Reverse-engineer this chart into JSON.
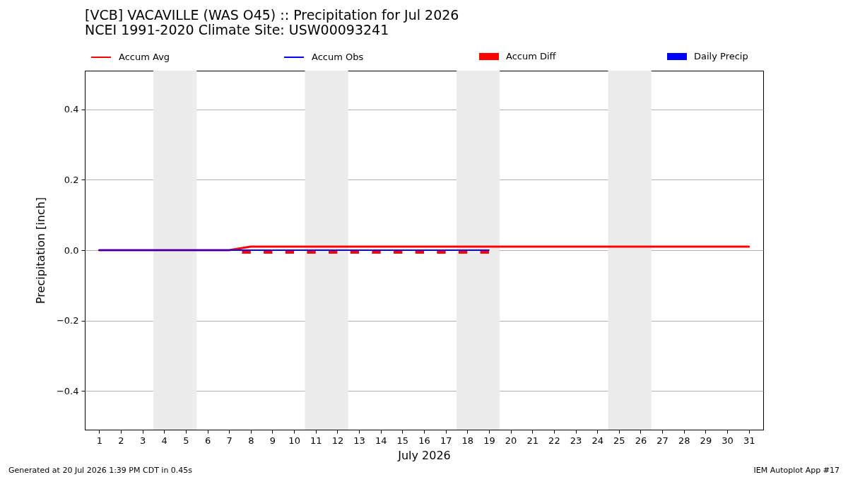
{
  "chart_data": {
    "type": "line",
    "title": "[VCB] VACAVILLE (WAS O45) :: Precipitation for Jul 2026",
    "subtitle": "NCEI 1991-2020 Climate Site: USW00093241",
    "xlabel": "July 2026",
    "ylabel": "Precipitation [inch]",
    "x": [
      1,
      2,
      3,
      4,
      5,
      6,
      7,
      8,
      9,
      10,
      11,
      12,
      13,
      14,
      15,
      16,
      17,
      18,
      19,
      20,
      21,
      22,
      23,
      24,
      25,
      26,
      27,
      28,
      29,
      30,
      31
    ],
    "series": [
      {
        "name": "Accum Avg",
        "color": "#ff0000",
        "values": [
          0,
          0,
          0,
          0,
          0,
          0,
          0,
          0.01,
          0.01,
          0.01,
          0.01,
          0.01,
          0.01,
          0.01,
          0.01,
          0.01,
          0.01,
          0.01,
          0.01,
          0.01,
          0.01,
          0.01,
          0.01,
          0.01,
          0.01,
          0.01,
          0.01,
          0.01,
          0.01,
          0.01,
          0.01
        ]
      },
      {
        "name": "Accum Obs",
        "color": "#0000ff",
        "x": [
          1,
          2,
          3,
          4,
          5,
          6,
          7,
          8,
          9,
          10,
          11,
          12,
          13,
          14,
          15,
          16,
          17,
          18,
          19
        ],
        "values": [
          0,
          0,
          0,
          0,
          0,
          0,
          0,
          0,
          0,
          0,
          0,
          0,
          0,
          0,
          0,
          0,
          0,
          0,
          0
        ]
      },
      {
        "name": "Accum Diff",
        "type": "bar",
        "color": "#ff0000",
        "x": [
          1,
          2,
          3,
          4,
          5,
          6,
          7,
          8,
          9,
          10,
          11,
          12,
          13,
          14,
          15,
          16,
          17,
          18,
          19
        ],
        "values": [
          0,
          0,
          0,
          0,
          0,
          0,
          0,
          -0.01,
          -0.01,
          -0.01,
          -0.01,
          -0.01,
          -0.01,
          -0.01,
          -0.01,
          -0.01,
          -0.01,
          -0.01,
          -0.01
        ]
      },
      {
        "name": "Daily Precip",
        "type": "bar",
        "color": "#0000ff",
        "x": [
          1,
          2,
          3,
          4,
          5,
          6,
          7,
          8,
          9,
          10,
          11,
          12,
          13,
          14,
          15,
          16,
          17,
          18,
          19
        ],
        "values": [
          0,
          0,
          0,
          0,
          0,
          0,
          0,
          0,
          0,
          0,
          0,
          0,
          0,
          0,
          0,
          0,
          0,
          0,
          0
        ]
      }
    ],
    "xlim": [
      0.5,
      31.5
    ],
    "ylim": [
      -0.51,
      0.51
    ],
    "xticks": [
      1,
      2,
      3,
      4,
      5,
      6,
      7,
      8,
      9,
      10,
      11,
      12,
      13,
      14,
      15,
      16,
      17,
      18,
      19,
      20,
      21,
      22,
      23,
      24,
      25,
      26,
      27,
      28,
      29,
      30,
      31
    ],
    "yticks": [
      {
        "value": -0.4,
        "label": "−0.4"
      },
      {
        "value": -0.2,
        "label": "−0.2"
      },
      {
        "value": 0,
        "label": "0.0"
      },
      0.2,
      0.4
    ],
    "grid": "y",
    "legend": "top",
    "bands": [
      {
        "axis": "x",
        "from": 3.5,
        "to": 5.5,
        "color": "#ececec"
      },
      {
        "axis": "x",
        "from": 10.5,
        "to": 12.5,
        "color": "#ececec"
      },
      {
        "axis": "x",
        "from": 17.5,
        "to": 19.5,
        "color": "#ececec"
      },
      {
        "axis": "x",
        "from": 24.5,
        "to": 26.5,
        "color": "#ececec"
      }
    ],
    "annotations": [
      "Generated at 20 Jul 2026 1:39 PM CDT in 0.45s",
      "IEM Autoplot App #17"
    ]
  }
}
